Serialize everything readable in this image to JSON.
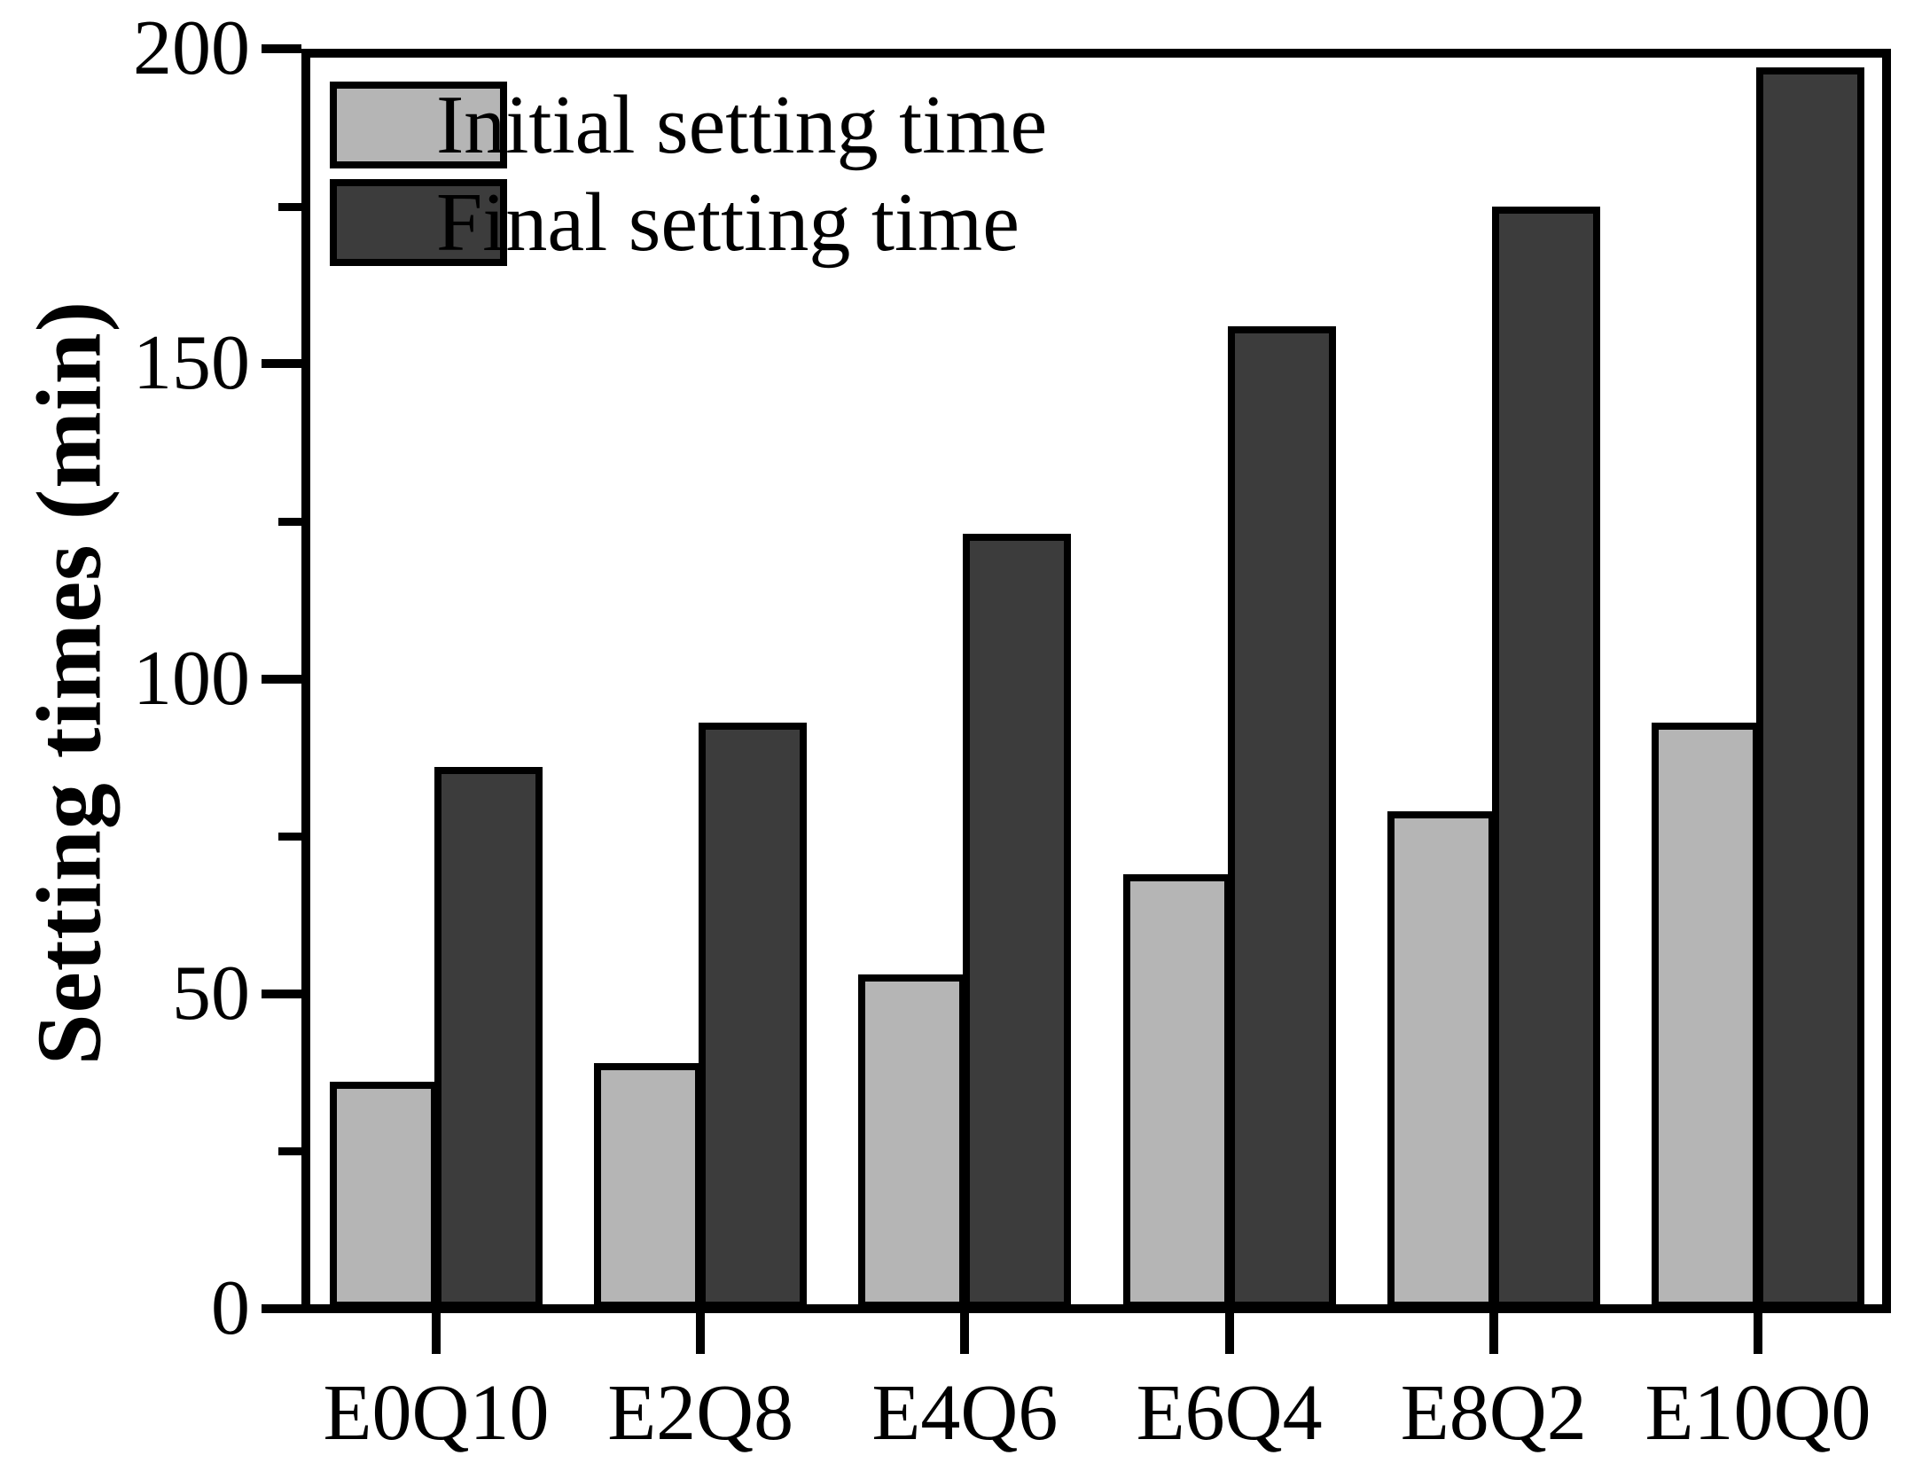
{
  "chart_data": {
    "type": "bar",
    "title": "",
    "categories": [
      "E0Q10",
      "E2Q8",
      "E4Q6",
      "E6Q4",
      "E8Q2",
      "E10Q0"
    ],
    "series": [
      {
        "name": "Initial setting time",
        "color": "#b5b5b5",
        "values": [
          36,
          39,
          53,
          69,
          79,
          93
        ]
      },
      {
        "name": "Final setting time",
        "color": "#3c3c3c",
        "values": [
          86,
          93,
          123,
          156,
          175,
          197
        ]
      }
    ],
    "xlabel": "",
    "ylabel": "Setting times (min)",
    "ylim": [
      0,
      200
    ],
    "yticks_major": [
      0,
      50,
      100,
      150,
      200
    ],
    "yticks_minor": [
      25,
      75,
      125,
      175
    ],
    "grid": false,
    "legend_position": "top-left",
    "axis_color": "#000000",
    "background_color": "#ffffff"
  }
}
